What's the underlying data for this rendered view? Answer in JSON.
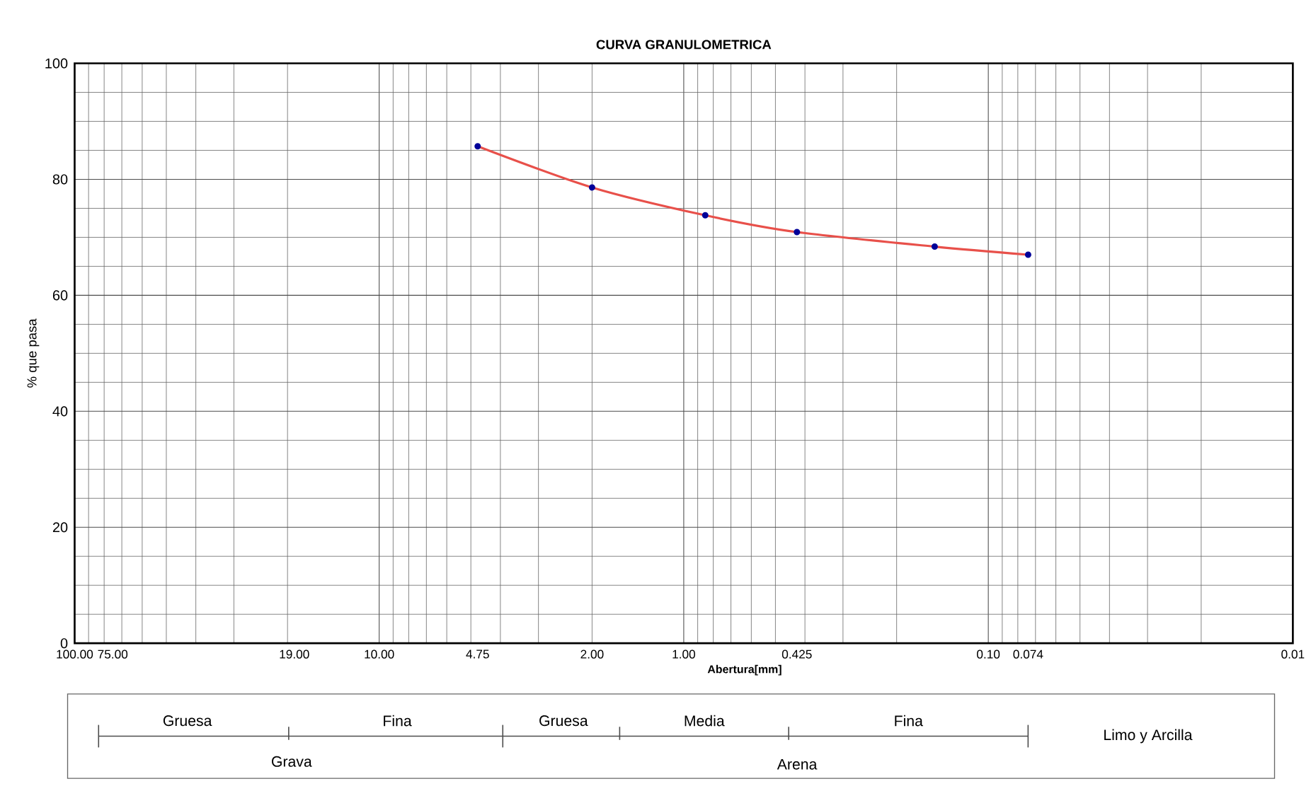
{
  "chart_data": {
    "type": "line",
    "title": "CURVA GRANULOMETRICA",
    "xlabel": "Abertura[mm]",
    "ylabel": "% que pasa",
    "log": "x",
    "xlim": [
      100,
      0.01
    ],
    "ylim": [
      0,
      100
    ],
    "xticks": [
      {
        "value": 100,
        "label": "100.00"
      },
      {
        "value": 10,
        "label": "10.00"
      },
      {
        "value": 1,
        "label": "1.00"
      },
      {
        "value": 0.1,
        "label": "0.10"
      },
      {
        "value": 0.01,
        "label": "0.01"
      },
      {
        "value": 75,
        "label": "75.00"
      },
      {
        "value": 19,
        "label": "19.00"
      },
      {
        "value": 4.75,
        "label": "4.75"
      },
      {
        "value": 2,
        "label": "2.00"
      },
      {
        "value": 0.425,
        "label": "0.425"
      },
      {
        "value": 0.074,
        "label": "0.074"
      }
    ],
    "yticks": [
      0,
      20,
      40,
      60,
      80,
      100
    ],
    "grid": true,
    "marker": "circle",
    "line_style": "solid",
    "x": [
      4.75,
      2.0,
      0.85,
      0.425,
      0.15,
      0.074
    ],
    "series": [
      {
        "color": "#e8504a",
        "values": [
          85.7,
          78.6,
          73.8,
          70.9,
          68.4,
          67
        ]
      }
    ],
    "annotations": [
      "Gruesa",
      "Fina",
      "Gruesa",
      "Media",
      "Fina",
      "Limo y Arcilla",
      "Grava",
      "Arena"
    ]
  }
}
